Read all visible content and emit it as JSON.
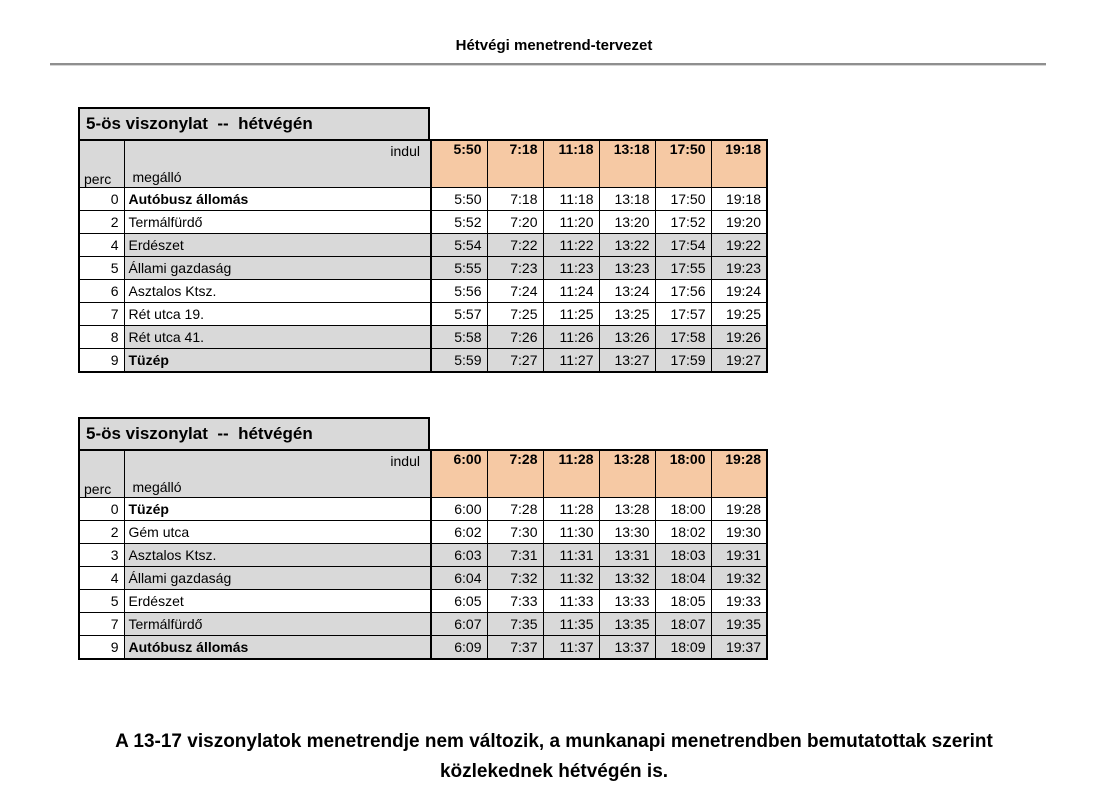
{
  "page": {
    "title": "Hétvégi menetrend-tervezet",
    "footer_line1": "A 13-17 viszonylatok menetrendje nem változik, a munkanapi menetrendben bemutatottak szerint",
    "footer_line2": "közlekednek hétvégén is."
  },
  "colors": {
    "departure_fill": "#f6c9a4",
    "shaded_fill": "#d9d9d9",
    "title_fill": "#d9d9d9",
    "border": "#000000"
  },
  "tables": [
    {
      "title": "5-ös viszonylat  --  hétvégén",
      "indul_label": "indul",
      "perc_label": "perc",
      "megallo_label": "megálló",
      "departures": [
        "5:50",
        "7:18",
        "11:18",
        "13:18",
        "17:50",
        "19:18"
      ],
      "rows": [
        {
          "perc": "0",
          "stop": "Autóbusz állomás",
          "bold": true,
          "shaded": false,
          "times": [
            "5:50",
            "7:18",
            "11:18",
            "13:18",
            "17:50",
            "19:18"
          ]
        },
        {
          "perc": "2",
          "stop": "Termálfürdő",
          "bold": false,
          "shaded": false,
          "times": [
            "5:52",
            "7:20",
            "11:20",
            "13:20",
            "17:52",
            "19:20"
          ]
        },
        {
          "perc": "4",
          "stop": "Erdészet",
          "bold": false,
          "shaded": true,
          "times": [
            "5:54",
            "7:22",
            "11:22",
            "13:22",
            "17:54",
            "19:22"
          ]
        },
        {
          "perc": "5",
          "stop": "Állami gazdaság",
          "bold": false,
          "shaded": true,
          "times": [
            "5:55",
            "7:23",
            "11:23",
            "13:23",
            "17:55",
            "19:23"
          ]
        },
        {
          "perc": "6",
          "stop": "Asztalos Ktsz.",
          "bold": false,
          "shaded": false,
          "times": [
            "5:56",
            "7:24",
            "11:24",
            "13:24",
            "17:56",
            "19:24"
          ]
        },
        {
          "perc": "7",
          "stop": "Rét utca 19.",
          "bold": false,
          "shaded": false,
          "times": [
            "5:57",
            "7:25",
            "11:25",
            "13:25",
            "17:57",
            "19:25"
          ]
        },
        {
          "perc": "8",
          "stop": "Rét utca 41.",
          "bold": false,
          "shaded": true,
          "times": [
            "5:58",
            "7:26",
            "11:26",
            "13:26",
            "17:58",
            "19:26"
          ]
        },
        {
          "perc": "9",
          "stop": "Tüzép",
          "bold": true,
          "shaded": true,
          "times": [
            "5:59",
            "7:27",
            "11:27",
            "13:27",
            "17:59",
            "19:27"
          ]
        }
      ]
    },
    {
      "title": "5-ös viszonylat  --  hétvégén",
      "indul_label": "indul",
      "perc_label": "perc",
      "megallo_label": "megálló",
      "departures": [
        "6:00",
        "7:28",
        "11:28",
        "13:28",
        "18:00",
        "19:28"
      ],
      "rows": [
        {
          "perc": "0",
          "stop": "Tüzép",
          "bold": true,
          "shaded": false,
          "times": [
            "6:00",
            "7:28",
            "11:28",
            "13:28",
            "18:00",
            "19:28"
          ]
        },
        {
          "perc": "2",
          "stop": "Gém utca",
          "bold": false,
          "shaded": false,
          "times": [
            "6:02",
            "7:30",
            "11:30",
            "13:30",
            "18:02",
            "19:30"
          ]
        },
        {
          "perc": "3",
          "stop": "Asztalos Ktsz.",
          "bold": false,
          "shaded": true,
          "times": [
            "6:03",
            "7:31",
            "11:31",
            "13:31",
            "18:03",
            "19:31"
          ]
        },
        {
          "perc": "4",
          "stop": "Állami gazdaság",
          "bold": false,
          "shaded": true,
          "times": [
            "6:04",
            "7:32",
            "11:32",
            "13:32",
            "18:04",
            "19:32"
          ]
        },
        {
          "perc": "5",
          "stop": "Erdészet",
          "bold": false,
          "shaded": false,
          "times": [
            "6:05",
            "7:33",
            "11:33",
            "13:33",
            "18:05",
            "19:33"
          ]
        },
        {
          "perc": "7",
          "stop": "Termálfürdő",
          "bold": false,
          "shaded": true,
          "times": [
            "6:07",
            "7:35",
            "11:35",
            "13:35",
            "18:07",
            "19:35"
          ]
        },
        {
          "perc": "9",
          "stop": "Autóbusz állomás",
          "bold": true,
          "shaded": true,
          "times": [
            "6:09",
            "7:37",
            "11:37",
            "13:37",
            "18:09",
            "19:37"
          ]
        }
      ]
    }
  ]
}
